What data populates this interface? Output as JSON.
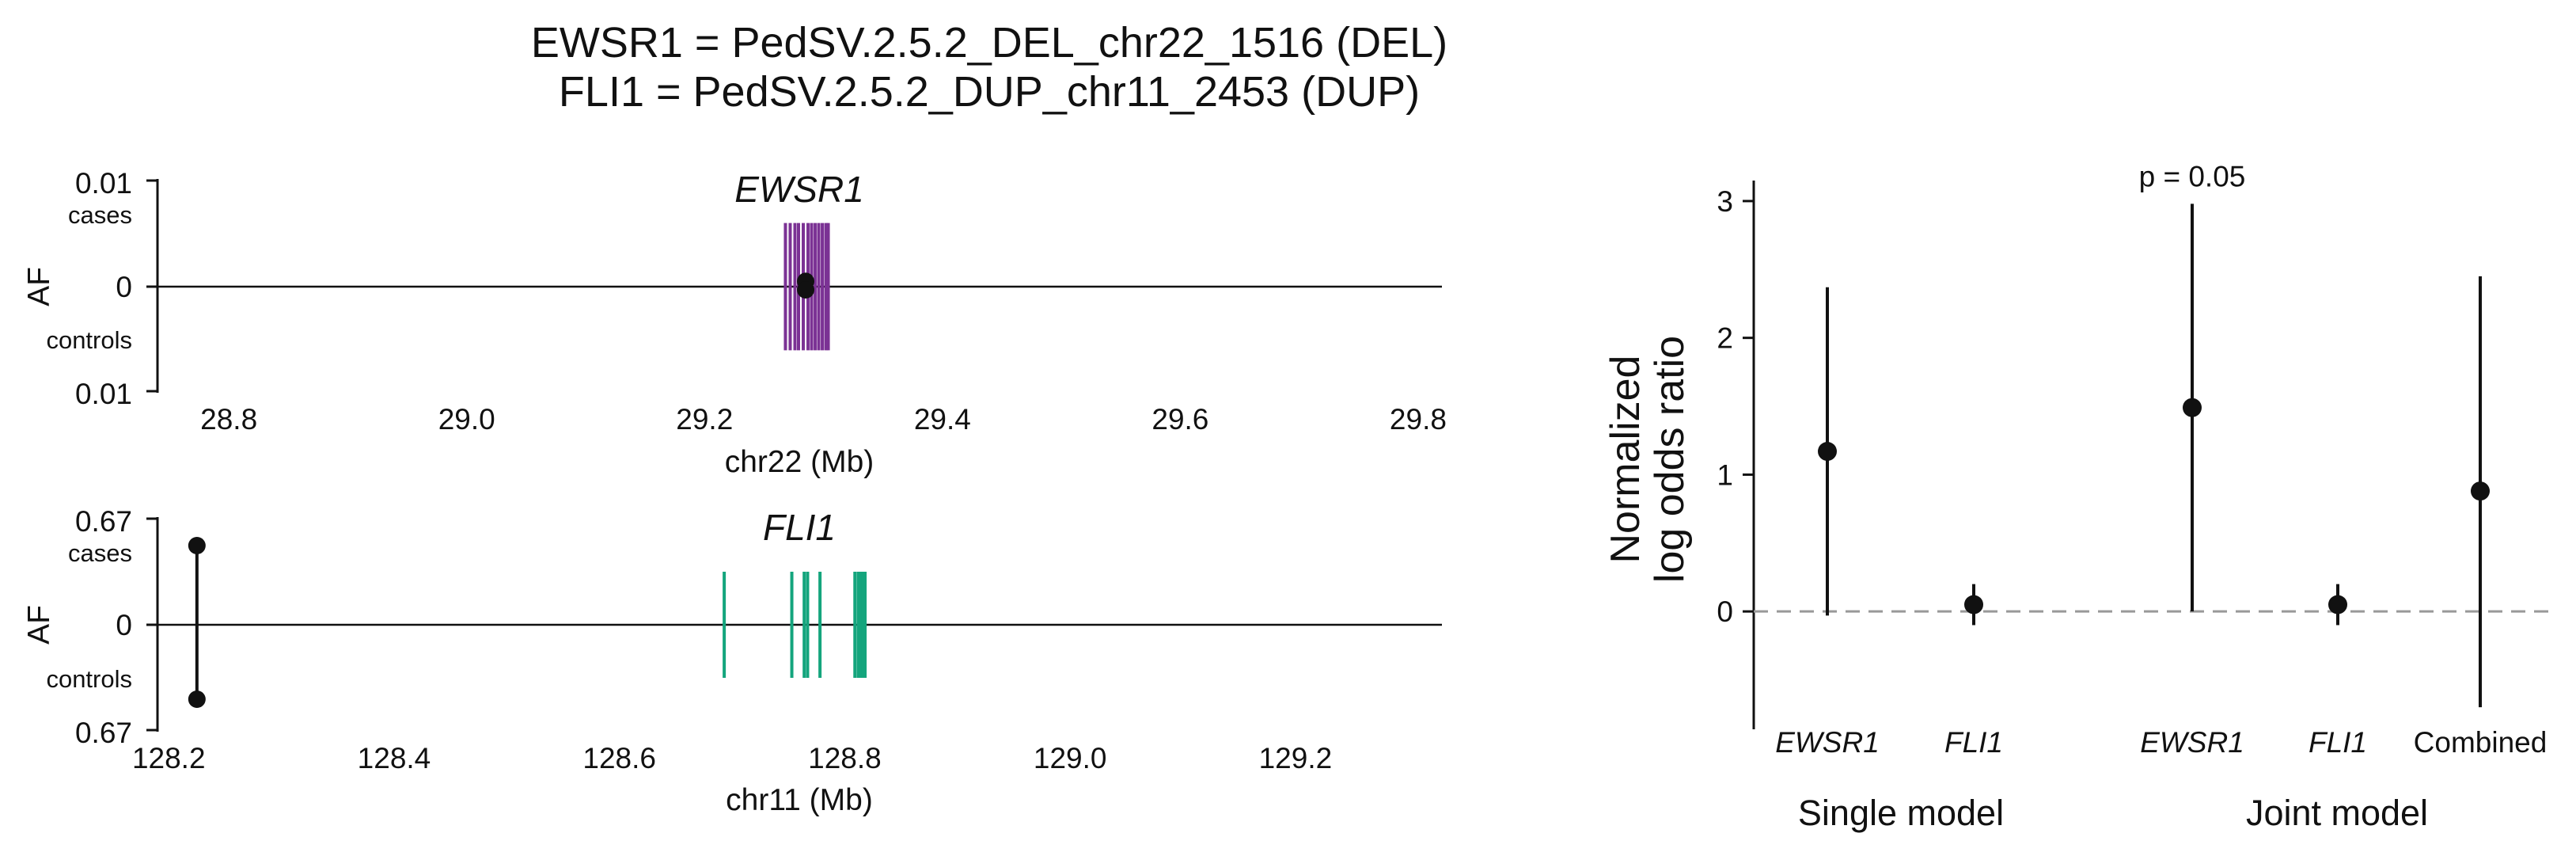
{
  "figure": {
    "title_line1": "EWSR1 = PedSV.2.5.2_DEL_chr22_1516 (DEL)",
    "title_line2": "FLI1 = PedSV.2.5.2_DUP_chr11_2453 (DUP)"
  },
  "chart_data": [
    {
      "type": "locus",
      "gene": "EWSR1",
      "color": "#7B3294",
      "xlabel": "chr22 (Mb)",
      "ylabel": "AF",
      "xlim": [
        28.74,
        29.82
      ],
      "xticks": [
        "28.8",
        "29.0",
        "29.2",
        "29.4",
        "29.6",
        "29.8"
      ],
      "ytick_top": "0.01",
      "ytick_bottom": "0.01",
      "ytick_zero": "0",
      "cases_label": "cases",
      "controls_label": "controls",
      "af_max": 0.01,
      "exons_mb": [
        29.268,
        29.272,
        29.276,
        29.279,
        29.283,
        29.287,
        29.29,
        29.293,
        29.296,
        29.299,
        29.302,
        29.304
      ],
      "exon_extent": 0.6,
      "variant": {
        "position_mb": 29.285,
        "case_af": 0.0005,
        "control_af": 0.0003
      }
    },
    {
      "type": "locus",
      "gene": "FLI1",
      "color": "#14A57D",
      "xlabel": "chr11 (Mb)",
      "ylabel": "AF",
      "xlim": [
        128.19,
        129.33
      ],
      "xticks": [
        "128.2",
        "128.4",
        "128.6",
        "128.8",
        "129.0",
        "129.2"
      ],
      "ytick_top": "0.67",
      "ytick_bottom": "0.67",
      "ytick_zero": "0",
      "cases_label": "cases",
      "controls_label": "controls",
      "af_max": 0.67,
      "exons_mb": [
        128.693,
        128.753,
        128.764,
        128.767,
        128.778,
        128.809,
        128.812,
        128.814,
        128.816,
        128.818
      ],
      "exon_extent": 0.5,
      "variant": {
        "position_mb": 128.225,
        "case_af": 0.5,
        "control_af": 0.47
      }
    },
    {
      "type": "scatter",
      "ylabel_line1": "Normalized",
      "ylabel_line2": "log odds ratio",
      "ylim": [
        -0.85,
        3.15
      ],
      "yticks": [
        "0",
        "1",
        "2",
        "3"
      ],
      "reference_line": 0,
      "points": [
        {
          "label": "EWSR1",
          "group": "Single model",
          "estimate": 1.17,
          "lower": -0.03,
          "upper": 2.37,
          "italic": true
        },
        {
          "label": "FLI1",
          "group": "Single model",
          "estimate": 0.05,
          "lower": -0.1,
          "upper": 0.2,
          "italic": true
        },
        {
          "label": "EWSR1",
          "group": "Joint model",
          "estimate": 1.49,
          "lower": 0.0,
          "upper": 2.98,
          "italic": true
        },
        {
          "label": "FLI1",
          "group": "Joint model",
          "estimate": 0.05,
          "lower": -0.1,
          "upper": 0.2,
          "italic": true
        },
        {
          "label": "Combined",
          "group": "Joint model",
          "estimate": 0.88,
          "lower": -0.7,
          "upper": 2.45,
          "italic": false
        }
      ],
      "annotation": "p = 0.05",
      "group_single": "Single model",
      "group_joint": "Joint model"
    }
  ]
}
